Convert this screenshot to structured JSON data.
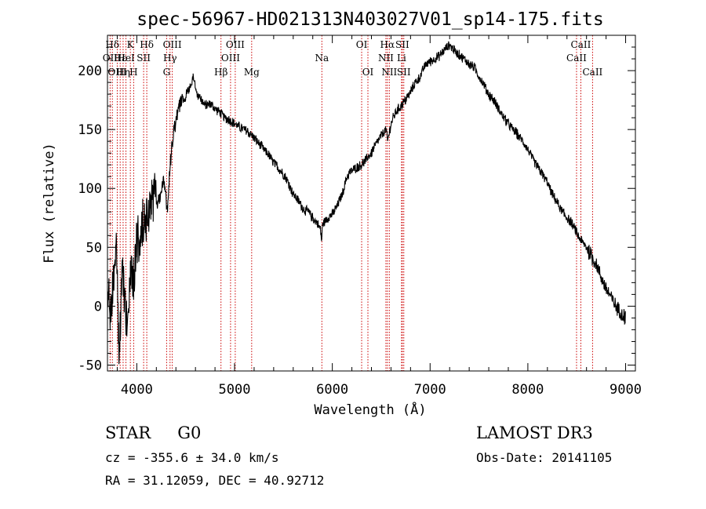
{
  "chart_data": {
    "type": "line",
    "title": "spec-56967-HD021313N403027V01_sp14-175.fits",
    "xlabel": "Wavelength (Å)",
    "ylabel": "Flux (relative)",
    "xlim": [
      3700,
      9100
    ],
    "ylim": [
      -55,
      230
    ],
    "xticks": [
      4000,
      5000,
      6000,
      7000,
      8000,
      9000
    ],
    "yticks": [
      -50,
      0,
      50,
      100,
      150,
      200
    ],
    "grid": false,
    "line_color": "#000000",
    "marker_color": "#cc0000",
    "series": [
      {
        "name": "flux",
        "x": [
          3700,
          3730,
          3760,
          3790,
          3820,
          3850,
          3880,
          3910,
          3940,
          3970,
          4000,
          4030,
          4060,
          4090,
          4120,
          4150,
          4180,
          4210,
          4250,
          4280,
          4310,
          4340,
          4380,
          4420,
          4460,
          4500,
          4540,
          4580,
          4620,
          4660,
          4700,
          4750,
          4800,
          4850,
          4900,
          4950,
          5000,
          5050,
          5100,
          5150,
          5200,
          5250,
          5300,
          5350,
          5400,
          5450,
          5500,
          5550,
          5600,
          5650,
          5700,
          5750,
          5800,
          5850,
          5880,
          5890,
          5900,
          5950,
          6000,
          6050,
          6100,
          6150,
          6200,
          6250,
          6300,
          6350,
          6400,
          6450,
          6500,
          6550,
          6565,
          6600,
          6650,
          6700,
          6750,
          6800,
          6850,
          6900,
          6950,
          7000,
          7050,
          7100,
          7150,
          7200,
          7250,
          7300,
          7350,
          7400,
          7450,
          7500,
          7550,
          7600,
          7650,
          7700,
          7750,
          7800,
          7850,
          7900,
          7950,
          8000,
          8050,
          8100,
          8150,
          8200,
          8250,
          8300,
          8350,
          8400,
          8450,
          8500,
          8550,
          8600,
          8650,
          8700,
          8750,
          8800,
          8850,
          8900,
          8950,
          9000
        ],
        "values": [
          10,
          -5,
          20,
          50,
          -48,
          40,
          5,
          -15,
          30,
          20,
          60,
          55,
          70,
          75,
          80,
          90,
          95,
          85,
          95,
          110,
          80,
          120,
          150,
          165,
          175,
          180,
          185,
          195,
          180,
          175,
          170,
          172,
          168,
          165,
          160,
          158,
          155,
          152,
          150,
          147,
          143,
          138,
          133,
          128,
          122,
          117,
          112,
          105,
          95,
          90,
          83,
          80,
          75,
          70,
          65,
          55,
          70,
          75,
          78,
          85,
          95,
          110,
          115,
          118,
          120,
          125,
          130,
          138,
          145,
          150,
          140,
          155,
          165,
          170,
          175,
          182,
          190,
          195,
          205,
          208,
          210,
          213,
          218,
          222,
          217,
          213,
          210,
          205,
          203,
          195,
          188,
          180,
          175,
          168,
          160,
          155,
          150,
          145,
          140,
          133,
          125,
          118,
          112,
          105,
          95,
          88,
          80,
          75,
          70,
          62,
          55,
          50,
          42,
          35,
          25,
          15,
          8,
          0,
          -5,
          -10
        ]
      }
    ],
    "line_markers": [
      {
        "label": "Hδ",
        "x": 3750,
        "row": 1
      },
      {
        "label": "OII",
        "x": 3727,
        "row": 2
      },
      {
        "label": "OIII",
        "x": 3800,
        "row": 3
      },
      {
        "label": "Hε",
        "x": 3830,
        "row": 2
      },
      {
        "label": "Hη",
        "x": 3860,
        "row": 3
      },
      {
        "label": "K",
        "x": 3934,
        "row": 1
      },
      {
        "label": "HeI",
        "x": 3889,
        "row": 2
      },
      {
        "label": "H",
        "x": 3968,
        "row": 3
      },
      {
        "label": "SII",
        "x": 4070,
        "row": 2
      },
      {
        "label": "Hδ",
        "x": 4102,
        "row": 1
      },
      {
        "label": "OIII",
        "x": 4363,
        "row": 1
      },
      {
        "label": "Hγ",
        "x": 4340,
        "row": 2
      },
      {
        "label": "G",
        "x": 4305,
        "row": 3
      },
      {
        "label": "Hβ",
        "x": 4861,
        "row": 3
      },
      {
        "label": "OIII",
        "x": 5007,
        "row": 1
      },
      {
        "label": "OIII",
        "x": 4959,
        "row": 2
      },
      {
        "label": "Mg",
        "x": 5175,
        "row": 3
      },
      {
        "label": "Na",
        "x": 5893,
        "row": 2
      },
      {
        "label": "OI",
        "x": 6300,
        "row": 1
      },
      {
        "label": "OI",
        "x": 6364,
        "row": 3
      },
      {
        "label": "Hα",
        "x": 6563,
        "row": 1
      },
      {
        "label": "NII",
        "x": 6548,
        "row": 2
      },
      {
        "label": "NII",
        "x": 6583,
        "row": 3
      },
      {
        "label": "SII",
        "x": 6716,
        "row": 1
      },
      {
        "label": "Li",
        "x": 6708,
        "row": 2
      },
      {
        "label": "SII",
        "x": 6731,
        "row": 3
      },
      {
        "label": "CaII",
        "x": 8542,
        "row": 1
      },
      {
        "label": "CaII",
        "x": 8498,
        "row": 2
      },
      {
        "label": "CaII",
        "x": 8662,
        "row": 3
      }
    ]
  },
  "info": {
    "class": "STAR",
    "subclass": "G0",
    "survey": "LAMOST DR3",
    "cz": "cz = -355.6 ± 34.0 km/s",
    "obs_date": "Obs-Date: 20141105",
    "coords": "RA =  31.12059, DEC =  40.92712"
  }
}
